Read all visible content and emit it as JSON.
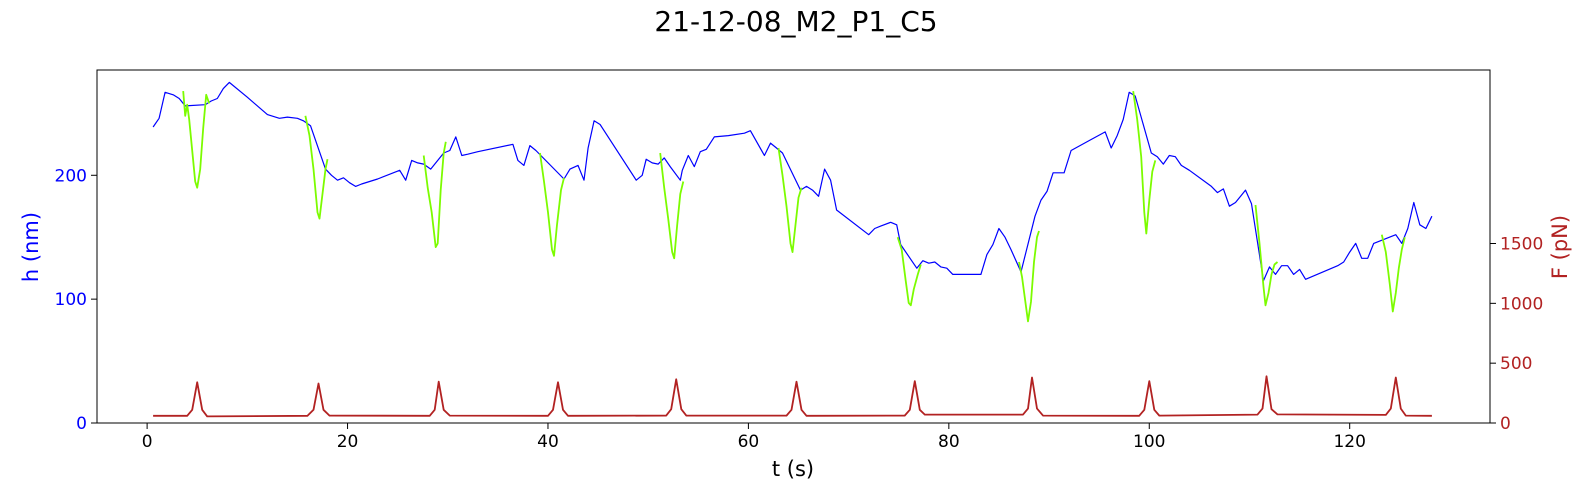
{
  "chart_data": {
    "type": "line",
    "title": "21-12-08_M2_P1_C5",
    "xlabel": "t (s)",
    "ylabel_left": "h (nm)",
    "ylabel_right": "F (pN)",
    "xlim": [
      -5,
      134
    ],
    "ylim_left": [
      0,
      285
    ],
    "ylim_right": [
      0,
      2950
    ],
    "x_ticks": [
      0,
      20,
      40,
      60,
      80,
      100,
      120
    ],
    "y_left_ticks": [
      0,
      100,
      200
    ],
    "y_right_ticks": [
      0,
      500,
      1000,
      1500
    ],
    "grid": false,
    "colors": {
      "height": "#0000ff",
      "height_compression": "#7cfc00",
      "force": "#b22222",
      "left_axis_text": "#0000ff",
      "right_axis_text": "#b22222"
    },
    "series": [
      {
        "axis": "left",
        "color": "#0000ff",
        "points": [
          [
            0.6,
            239
          ],
          [
            1.2,
            246
          ],
          [
            1.8,
            267
          ],
          [
            2.6,
            265
          ],
          [
            3.2,
            262
          ],
          [
            3.8,
            256
          ],
          [
            5.8,
            257
          ],
          [
            6.4,
            260
          ],
          [
            7.0,
            262
          ],
          [
            7.6,
            270
          ],
          [
            8.2,
            275
          ],
          [
            10.0,
            263
          ],
          [
            12.0,
            249
          ],
          [
            13.2,
            246
          ],
          [
            14.0,
            247
          ],
          [
            15.0,
            246
          ],
          [
            15.6,
            244
          ],
          [
            16.3,
            240
          ],
          [
            17.8,
            205
          ],
          [
            18.4,
            200
          ],
          [
            19.0,
            196
          ],
          [
            19.6,
            198
          ],
          [
            20.2,
            194
          ],
          [
            20.8,
            191
          ],
          [
            21.4,
            193
          ],
          [
            23.0,
            197
          ],
          [
            25.2,
            204
          ],
          [
            25.8,
            196
          ],
          [
            26.4,
            212
          ],
          [
            27.0,
            210
          ],
          [
            27.6,
            209
          ],
          [
            28.3,
            205
          ],
          [
            29.6,
            218
          ],
          [
            30.2,
            220
          ],
          [
            30.8,
            231
          ],
          [
            31.4,
            216
          ],
          [
            32.0,
            217
          ],
          [
            33.0,
            219
          ],
          [
            36.5,
            225
          ],
          [
            37.0,
            212
          ],
          [
            37.6,
            208
          ],
          [
            38.2,
            224
          ],
          [
            38.8,
            220
          ],
          [
            41.6,
            197
          ],
          [
            42.2,
            205
          ],
          [
            43.0,
            208
          ],
          [
            43.6,
            196
          ],
          [
            44.0,
            222
          ],
          [
            44.6,
            244
          ],
          [
            45.2,
            241
          ],
          [
            48.8,
            196
          ],
          [
            49.4,
            200
          ],
          [
            49.8,
            213
          ],
          [
            50.4,
            210
          ],
          [
            51.0,
            209
          ],
          [
            51.6,
            214
          ],
          [
            52.2,
            207
          ],
          [
            53.2,
            196
          ],
          [
            53.4,
            204
          ],
          [
            54.0,
            216
          ],
          [
            54.6,
            207
          ],
          [
            55.2,
            219
          ],
          [
            55.8,
            221
          ],
          [
            56.6,
            231
          ],
          [
            58.0,
            232
          ],
          [
            59.6,
            234
          ],
          [
            60.2,
            236
          ],
          [
            61.6,
            216
          ],
          [
            62.2,
            226
          ],
          [
            62.8,
            222
          ],
          [
            63.4,
            218
          ],
          [
            65.2,
            188
          ],
          [
            65.8,
            191
          ],
          [
            66.4,
            188
          ],
          [
            67.0,
            183
          ],
          [
            67.6,
            205
          ],
          [
            68.2,
            196
          ],
          [
            68.8,
            172
          ],
          [
            72.0,
            152
          ],
          [
            72.6,
            157
          ],
          [
            73.2,
            159
          ],
          [
            74.2,
            162
          ],
          [
            74.8,
            160
          ],
          [
            75.2,
            144
          ],
          [
            76.8,
            125
          ],
          [
            77.4,
            131
          ],
          [
            78.0,
            129
          ],
          [
            78.6,
            130
          ],
          [
            79.2,
            126
          ],
          [
            79.8,
            125
          ],
          [
            80.4,
            120
          ],
          [
            83.2,
            120
          ],
          [
            83.8,
            136
          ],
          [
            84.4,
            144
          ],
          [
            85.0,
            157
          ],
          [
            85.6,
            150
          ],
          [
            86.2,
            140
          ],
          [
            87.2,
            122
          ],
          [
            88.6,
            167
          ],
          [
            89.2,
            180
          ],
          [
            89.8,
            187
          ],
          [
            90.4,
            202
          ],
          [
            91.5,
            202
          ],
          [
            92.2,
            220
          ],
          [
            94.0,
            228
          ],
          [
            95.6,
            235
          ],
          [
            96.2,
            222
          ],
          [
            96.8,
            232
          ],
          [
            97.4,
            245
          ],
          [
            98.0,
            267
          ],
          [
            98.6,
            264
          ],
          [
            100.2,
            218
          ],
          [
            100.8,
            215
          ],
          [
            101.4,
            209
          ],
          [
            102.0,
            216
          ],
          [
            102.6,
            215
          ],
          [
            103.2,
            208
          ],
          [
            104.0,
            204
          ],
          [
            106.2,
            191
          ],
          [
            106.8,
            186
          ],
          [
            107.4,
            189
          ],
          [
            108.0,
            175
          ],
          [
            108.6,
            178
          ],
          [
            109.2,
            184
          ],
          [
            109.6,
            188
          ],
          [
            110.2,
            177
          ],
          [
            111.4,
            115
          ],
          [
            112.0,
            126
          ],
          [
            112.6,
            120
          ],
          [
            113.2,
            127
          ],
          [
            113.8,
            127
          ],
          [
            114.4,
            120
          ],
          [
            115.0,
            124
          ],
          [
            115.6,
            116
          ],
          [
            118.8,
            127
          ],
          [
            119.4,
            130
          ],
          [
            120.0,
            138
          ],
          [
            120.6,
            145
          ],
          [
            121.2,
            133
          ],
          [
            121.8,
            133
          ],
          [
            122.4,
            145
          ],
          [
            124.6,
            152
          ],
          [
            125.2,
            145
          ],
          [
            125.8,
            157
          ],
          [
            126.4,
            178
          ],
          [
            127.0,
            160
          ],
          [
            127.6,
            157
          ],
          [
            128.2,
            167
          ]
        ]
      },
      {
        "axis": "left",
        "color": "#7cfc00",
        "segments": [
          [
            [
              3.6,
              268
            ],
            [
              3.8,
              248
            ],
            [
              4.0,
              257
            ],
            [
              4.2,
              245
            ],
            [
              4.5,
              220
            ],
            [
              4.8,
              195
            ],
            [
              5.0,
              190
            ],
            [
              5.3,
              205
            ],
            [
              5.6,
              238
            ],
            [
              5.9,
              265
            ],
            [
              6.2,
              258
            ]
          ],
          [
            [
              15.8,
              248
            ],
            [
              16.2,
              232
            ],
            [
              16.6,
              205
            ],
            [
              17.0,
              170
            ],
            [
              17.2,
              165
            ],
            [
              17.5,
              185
            ],
            [
              17.8,
              205
            ],
            [
              18.0,
              213
            ]
          ],
          [
            [
              27.6,
              216
            ],
            [
              28.0,
              190
            ],
            [
              28.4,
              170
            ],
            [
              28.8,
              142
            ],
            [
              29.0,
              145
            ],
            [
              29.3,
              188
            ],
            [
              29.6,
              218
            ],
            [
              29.8,
              227
            ]
          ],
          [
            [
              39.2,
              218
            ],
            [
              39.6,
              195
            ],
            [
              40.0,
              170
            ],
            [
              40.4,
              140
            ],
            [
              40.6,
              135
            ],
            [
              40.9,
              160
            ],
            [
              41.3,
              188
            ],
            [
              41.6,
              198
            ]
          ],
          [
            [
              51.2,
              218
            ],
            [
              51.6,
              190
            ],
            [
              52.0,
              165
            ],
            [
              52.4,
              138
            ],
            [
              52.6,
              133
            ],
            [
              52.9,
              160
            ],
            [
              53.2,
              185
            ],
            [
              53.5,
              195
            ]
          ],
          [
            [
              63.0,
              222
            ],
            [
              63.4,
              200
            ],
            [
              63.8,
              175
            ],
            [
              64.2,
              145
            ],
            [
              64.4,
              138
            ],
            [
              64.7,
              160
            ],
            [
              65.0,
              182
            ],
            [
              65.3,
              190
            ]
          ],
          [
            [
              74.9,
              150
            ],
            [
              75.3,
              140
            ],
            [
              75.7,
              115
            ],
            [
              76.0,
              97
            ],
            [
              76.2,
              95
            ],
            [
              76.5,
              108
            ],
            [
              76.9,
              120
            ],
            [
              77.2,
              128
            ]
          ],
          [
            [
              87.0,
              130
            ],
            [
              87.3,
              118
            ],
            [
              87.6,
              100
            ],
            [
              87.9,
              82
            ],
            [
              88.2,
              98
            ],
            [
              88.5,
              130
            ],
            [
              88.8,
              150
            ],
            [
              89.0,
              155
            ]
          ],
          [
            [
              98.4,
              268
            ],
            [
              98.8,
              245
            ],
            [
              99.2,
              215
            ],
            [
              99.5,
              170
            ],
            [
              99.7,
              153
            ],
            [
              100.0,
              180
            ],
            [
              100.3,
              203
            ],
            [
              100.6,
              212
            ]
          ],
          [
            [
              110.6,
              176
            ],
            [
              111.0,
              145
            ],
            [
              111.4,
              110
            ],
            [
              111.6,
              95
            ],
            [
              111.9,
              105
            ],
            [
              112.2,
              120
            ],
            [
              112.5,
              128
            ],
            [
              112.8,
              130
            ]
          ],
          [
            [
              123.2,
              152
            ],
            [
              123.6,
              138
            ],
            [
              124.0,
              112
            ],
            [
              124.3,
              90
            ],
            [
              124.6,
              105
            ],
            [
              124.9,
              125
            ],
            [
              125.2,
              140
            ],
            [
              125.5,
              150
            ]
          ]
        ]
      },
      {
        "axis": "right",
        "color": "#b22222",
        "points": [
          [
            0.6,
            60
          ],
          [
            4.0,
            60
          ],
          [
            4.5,
            110
          ],
          [
            5.0,
            340
          ],
          [
            5.5,
            110
          ],
          [
            6.0,
            55
          ],
          [
            16.0,
            60
          ],
          [
            16.6,
            110
          ],
          [
            17.1,
            330
          ],
          [
            17.6,
            110
          ],
          [
            18.2,
            62
          ],
          [
            28.2,
            60
          ],
          [
            28.7,
            110
          ],
          [
            29.1,
            345
          ],
          [
            29.6,
            110
          ],
          [
            30.2,
            62
          ],
          [
            40.0,
            60
          ],
          [
            40.5,
            110
          ],
          [
            41.0,
            340
          ],
          [
            41.5,
            110
          ],
          [
            42.0,
            60
          ],
          [
            51.8,
            62
          ],
          [
            52.3,
            115
          ],
          [
            52.8,
            365
          ],
          [
            53.3,
            115
          ],
          [
            53.8,
            62
          ],
          [
            63.8,
            62
          ],
          [
            64.3,
            110
          ],
          [
            64.8,
            345
          ],
          [
            65.3,
            110
          ],
          [
            65.8,
            60
          ],
          [
            75.6,
            62
          ],
          [
            76.1,
            110
          ],
          [
            76.6,
            350
          ],
          [
            77.1,
            110
          ],
          [
            77.6,
            70
          ],
          [
            87.4,
            70
          ],
          [
            87.9,
            120
          ],
          [
            88.3,
            380
          ],
          [
            88.8,
            120
          ],
          [
            89.4,
            62
          ],
          [
            99.0,
            60
          ],
          [
            99.5,
            110
          ],
          [
            100.0,
            350
          ],
          [
            100.5,
            110
          ],
          [
            101.0,
            62
          ],
          [
            110.8,
            70
          ],
          [
            111.3,
            120
          ],
          [
            111.7,
            390
          ],
          [
            112.2,
            115
          ],
          [
            112.8,
            72
          ],
          [
            123.6,
            68
          ],
          [
            124.1,
            120
          ],
          [
            124.6,
            380
          ],
          [
            125.1,
            120
          ],
          [
            125.6,
            62
          ],
          [
            128.2,
            60
          ]
        ]
      }
    ]
  }
}
